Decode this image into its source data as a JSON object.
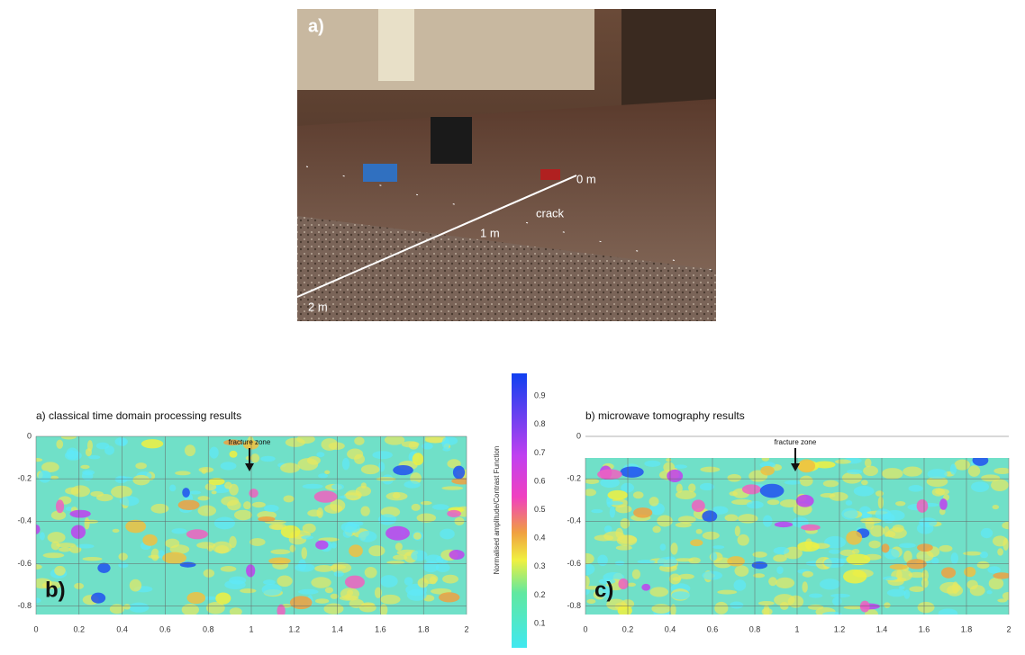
{
  "photo": {
    "label": "a)",
    "marks": [
      "0 m",
      "1 m",
      "crack",
      "2 m"
    ]
  },
  "colorbar": {
    "label": "Normalised amplitude/Contrast Function",
    "ticks": [
      0.1,
      0.2,
      0.3,
      0.4,
      0.5,
      0.6,
      0.7,
      0.8,
      0.9
    ]
  },
  "panels": [
    {
      "title": "a) classical time domain processing results",
      "label": "b)",
      "annotation": "fracture zone",
      "xlim": [
        0,
        2
      ],
      "ylim": [
        -0.84,
        0
      ],
      "xticks": [
        0,
        0.2,
        0.4,
        0.6,
        0.8,
        1,
        1.2,
        1.4,
        1.6,
        1.8,
        2
      ],
      "yticks": [
        0,
        -0.2,
        -0.4,
        -0.6,
        -0.8
      ]
    },
    {
      "title": "b) microwave tomography results",
      "label": "c)",
      "annotation": "fracture zone",
      "xlim": [
        0,
        2
      ],
      "ylim": [
        -0.84,
        0
      ],
      "xticks": [
        0,
        0.2,
        0.4,
        0.6,
        0.8,
        1,
        1.2,
        1.4,
        1.6,
        1.8,
        2
      ],
      "yticks": [
        0,
        -0.2,
        -0.4,
        -0.6,
        -0.8
      ]
    }
  ]
}
